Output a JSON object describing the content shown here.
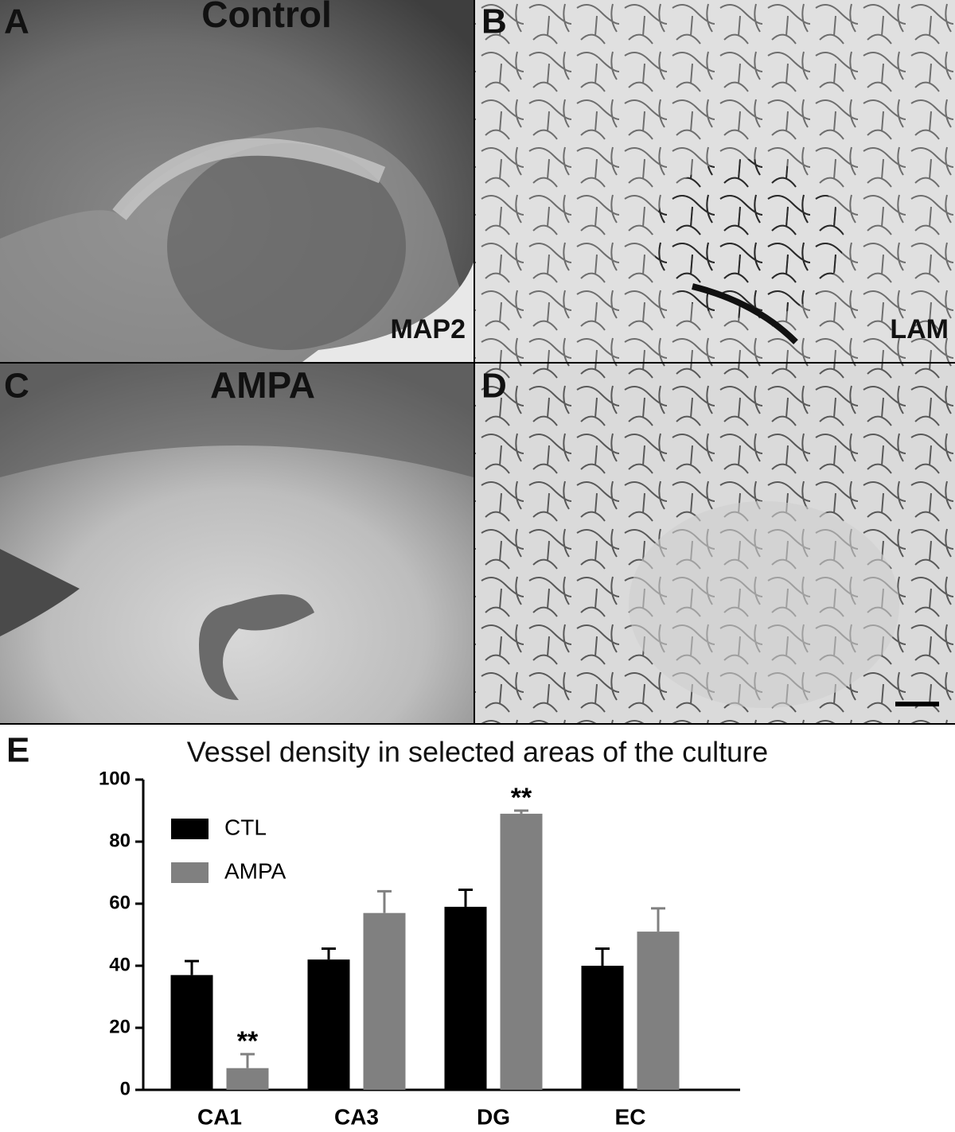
{
  "panels": [
    {
      "label": "A",
      "title": "Control",
      "stain": "MAP2"
    },
    {
      "label": "B",
      "stain": "LAM"
    },
    {
      "label": "C",
      "title": "AMPA"
    },
    {
      "label": "D"
    }
  ],
  "chart_data": {
    "type": "bar",
    "label": "E",
    "title": "Vessel density in selected areas of the culture",
    "categories": [
      "CA1",
      "CA3",
      "DG",
      "EC"
    ],
    "series": [
      {
        "name": "CTL",
        "color": "#000000",
        "values": [
          37,
          42,
          59,
          40
        ],
        "errors": [
          4.5,
          3.5,
          5.5,
          5.5
        ],
        "annotations": [
          null,
          null,
          null,
          null
        ]
      },
      {
        "name": "AMPA",
        "color": "#808080",
        "values": [
          7,
          57,
          89,
          51
        ],
        "errors": [
          4.5,
          7,
          1,
          7.5
        ],
        "annotations": [
          "**",
          null,
          "**",
          null
        ]
      }
    ],
    "ylim": [
      0,
      100
    ],
    "yticks": [
      0,
      20,
      40,
      60,
      80,
      100
    ],
    "legend": "upper left"
  }
}
